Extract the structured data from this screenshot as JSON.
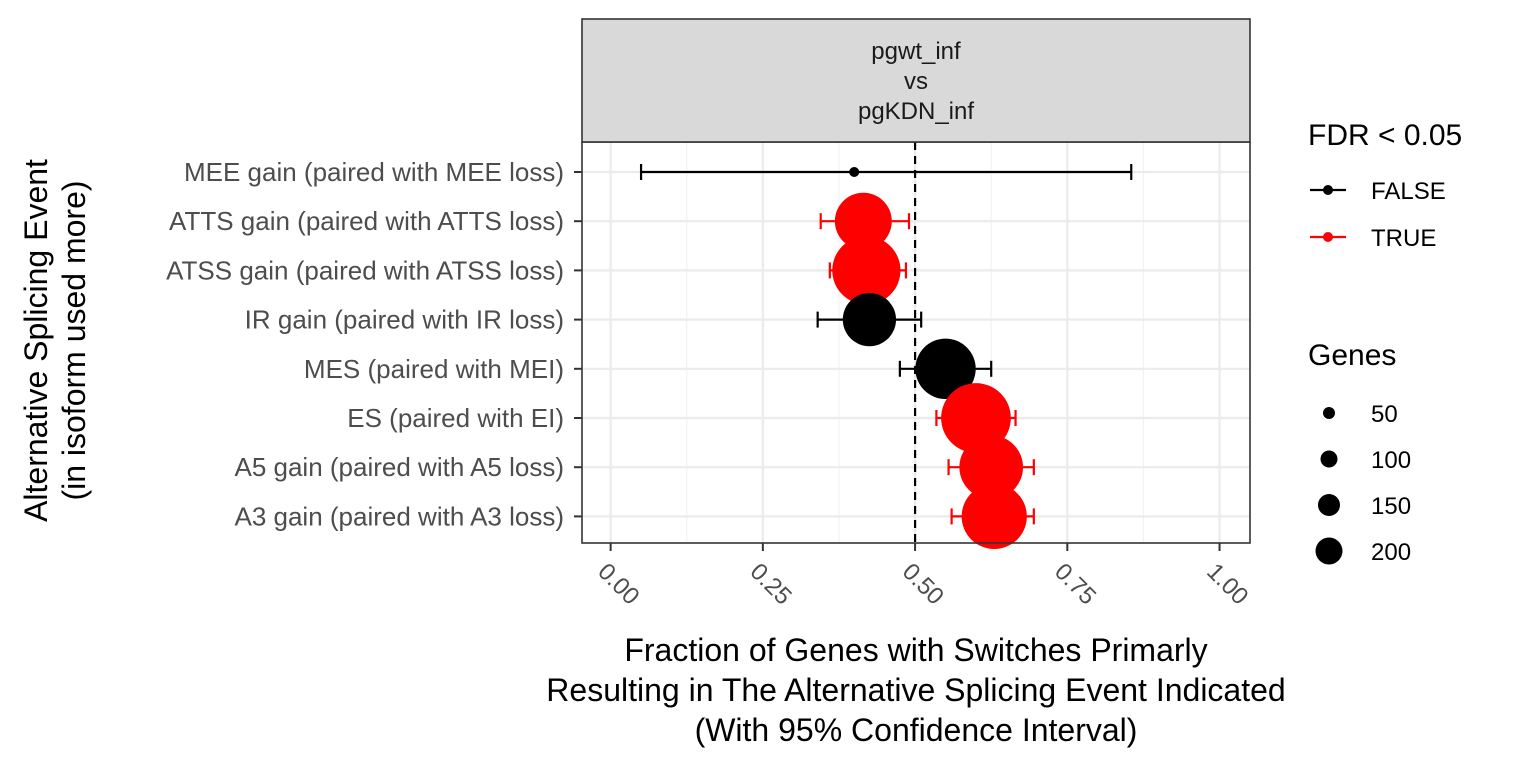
{
  "chart_data": {
    "type": "scatter",
    "subtype": "dot-with-error-bars",
    "facet_label": [
      "pgwt_inf",
      "vs",
      "pgKDN_inf"
    ],
    "xlabel": [
      "Fraction of Genes with Switches Primarly",
      "Resulting in The Alternative Splicing Event Indicated",
      "(With 95% Confidence Interval)"
    ],
    "ylabel": [
      "Alternative Splicing Event",
      "(in isoform used more)"
    ],
    "xlim": [
      -0.047,
      1.05
    ],
    "x_ticks": [
      0.0,
      0.25,
      0.5,
      0.75,
      1.0
    ],
    "x_tick_labels": [
      "0.00",
      "0.25",
      "0.50",
      "0.75",
      "1.00"
    ],
    "reference_line_x": 0.5,
    "grid": true,
    "legend_position": "right",
    "colors": {
      "FALSE": "#000000",
      "TRUE": "#ff0000"
    },
    "categories": [
      "MEE gain (paired with MEE loss)",
      "ATTS gain (paired with ATTS loss)",
      "ATSS gain (paired with ATSS loss)",
      "IR gain (paired with IR loss)",
      "MES (paired with MEI)",
      "ES (paired with EI)",
      "A5 gain (paired with A5 loss)",
      "A3 gain (paired with A3 loss)"
    ],
    "points": [
      {
        "category": "MEE gain (paired with MEE loss)",
        "x": 0.4,
        "lo": 0.05,
        "hi": 0.855,
        "fdr": "FALSE",
        "genes": 5
      },
      {
        "category": "ATTS gain (paired with ATTS loss)",
        "x": 0.415,
        "lo": 0.345,
        "hi": 0.49,
        "fdr": "TRUE",
        "genes": 160
      },
      {
        "category": "ATSS gain (paired with ATSS loss)",
        "x": 0.42,
        "lo": 0.36,
        "hi": 0.485,
        "fdr": "TRUE",
        "genes": 230
      },
      {
        "category": "IR gain (paired with IR loss)",
        "x": 0.425,
        "lo": 0.34,
        "hi": 0.51,
        "fdr": "FALSE",
        "genes": 140
      },
      {
        "category": "MES (paired with MEI)",
        "x": 0.55,
        "lo": 0.475,
        "hi": 0.625,
        "fdr": "FALSE",
        "genes": 180
      },
      {
        "category": "ES (paired with EI)",
        "x": 0.6,
        "lo": 0.535,
        "hi": 0.665,
        "fdr": "TRUE",
        "genes": 240
      },
      {
        "category": "A5 gain (paired with A5 loss)",
        "x": 0.625,
        "lo": 0.555,
        "hi": 0.695,
        "fdr": "TRUE",
        "genes": 200
      },
      {
        "category": "A3 gain (paired with A3 loss)",
        "x": 0.63,
        "lo": 0.56,
        "hi": 0.695,
        "fdr": "TRUE",
        "genes": 210
      }
    ],
    "legend_fdr": {
      "title": "FDR < 0.05",
      "entries": [
        {
          "label": "FALSE",
          "color": "#000000"
        },
        {
          "label": "TRUE",
          "color": "#ff0000"
        }
      ]
    },
    "legend_genes": {
      "title": "Genes",
      "entries": [
        {
          "label": "50",
          "value": 50
        },
        {
          "label": "100",
          "value": 100
        },
        {
          "label": "150",
          "value": 150
        },
        {
          "label": "200",
          "value": 200
        }
      ]
    }
  }
}
